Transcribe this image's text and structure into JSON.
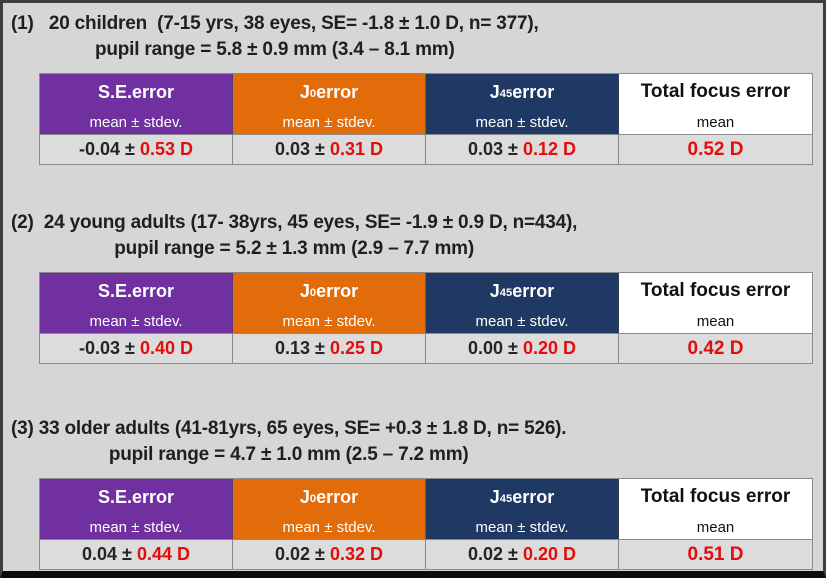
{
  "colors": {
    "se_header": "#7030a0",
    "j0_header": "#e36c0a",
    "j45_header": "#1f3864",
    "highlight_red": "#e30d0d",
    "page_background": "#d6d6d6"
  },
  "columns": [
    {
      "base": "S.E.",
      "sub": "",
      "rest": "  error",
      "subheader": "mean ± stdev."
    },
    {
      "base": "J",
      "sub": "0",
      "rest": " error",
      "subheader": "mean ± stdev."
    },
    {
      "base": "J",
      "sub": "45",
      "rest": " error",
      "subheader": "mean ± stdev."
    },
    {
      "base": "Total focus error",
      "sub": "",
      "rest": "",
      "subheader": "mean"
    }
  ],
  "sections": [
    {
      "heading_line1": "(1)   20 children  (7-15 yrs, 38 eyes, SE= -1.8 ± 1.0 D, n= 377),",
      "heading_line2": "pupil range = 5.8 ± 0.9 mm (3.4 – 8.1 mm)",
      "cells": [
        {
          "mean": "-0.04 ±",
          "stdev": "0.53 D"
        },
        {
          "mean": "0.03 ±",
          "stdev": "0.31 D"
        },
        {
          "mean": "0.03 ±",
          "stdev": "0.12 D"
        }
      ],
      "total": "0.52 D"
    },
    {
      "heading_line1": "(2)  24 young adults (17- 38yrs, 45 eyes, SE= -1.9 ± 0.9 D, n=434),",
      "heading_line2": "pupil range = 5.2 ± 1.3 mm (2.9 – 7.7 mm)",
      "cells": [
        {
          "mean": "-0.03 ±",
          "stdev": "0.40 D"
        },
        {
          "mean": "0.13 ±",
          "stdev": "0.25 D"
        },
        {
          "mean": "0.00 ±",
          "stdev": "0.20 D"
        }
      ],
      "total": "0.42 D"
    },
    {
      "heading_line1": "(3) 33 older adults (41-81yrs, 65 eyes, SE= +0.3 ± 1.8 D, n= 526).",
      "heading_line2": "pupil range = 4.7 ± 1.0 mm (2.5 – 7.2 mm)",
      "cells": [
        {
          "mean": "0.04 ±",
          "stdev": "0.44 D"
        },
        {
          "mean": "0.02 ±",
          "stdev": "0.32 D"
        },
        {
          "mean": "0.02 ±",
          "stdev": "0.20 D"
        }
      ],
      "total": "0.51 D"
    }
  ]
}
